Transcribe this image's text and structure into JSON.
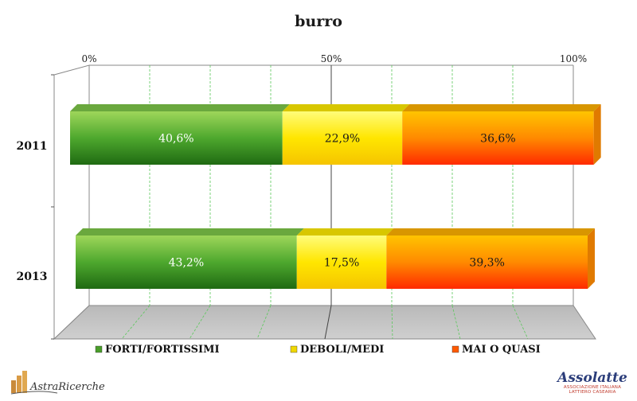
{
  "chart_data": {
    "type": "bar",
    "orientation": "horizontal-stacked-100",
    "title": "burro",
    "categories": [
      "2011",
      "2013"
    ],
    "x_ticks": [
      "0%",
      "50%",
      "100%"
    ],
    "xlim": [
      0,
      100
    ],
    "grid": true,
    "legend_position": "bottom",
    "series": [
      {
        "name": "FORTI/FORTISSIMI",
        "values": [
          40.6,
          43.2
        ],
        "labels": [
          "40,6%",
          "43,2%"
        ],
        "color": "#3e9a2a",
        "label_color": "#ffffff"
      },
      {
        "name": "DEBOLI/MEDI",
        "values": [
          22.9,
          17.5
        ],
        "labels": [
          "22,9%",
          "17,5%"
        ],
        "color": "#ffe600",
        "label_color": "#1a1a1a"
      },
      {
        "name": "MAI O QUASI",
        "values": [
          36.6,
          39.3
        ],
        "labels": [
          "36,6%",
          "39,3%"
        ],
        "color": "#ff6a00",
        "label_color": "#1a1a1a"
      }
    ]
  },
  "logos": {
    "left_text": "AstraRicerche",
    "right_main": "Assolatte",
    "right_sub1": "ASSOCIAZIONE ITALIANA",
    "right_sub2": "LATTIERO CASEARIA"
  }
}
